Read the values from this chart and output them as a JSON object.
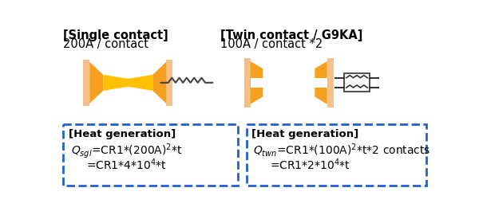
{
  "bg_color": "#ffffff",
  "title_left": "[Single contact]",
  "subtitle_left": "200A / contact",
  "title_right": "[Twin contact / G9KA]",
  "subtitle_right": "100A / contact *2",
  "contact_color_outer": "#f5c08a",
  "contact_color_inner": "#f5a020",
  "contact_color_yellow": "#ffc000",
  "box_border_color": "#2060d0",
  "text_color": "#000000",
  "label_left_line1": "[Heat generation]",
  "label_right_line1": "[Heat generation]"
}
